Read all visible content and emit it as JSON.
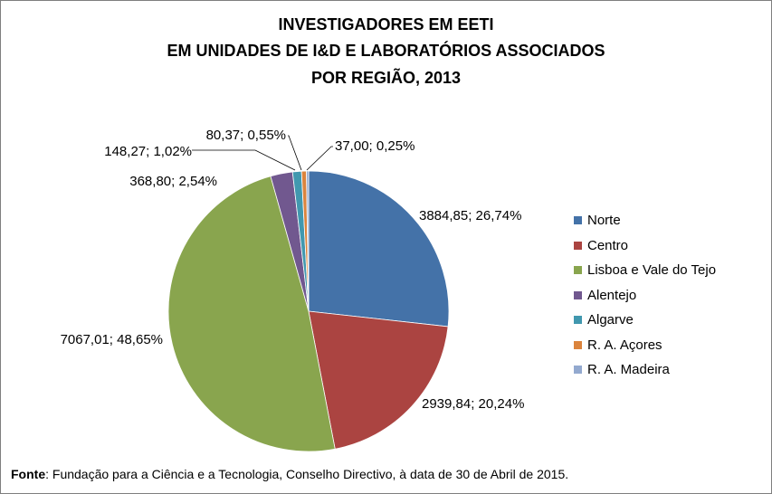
{
  "chart_data": {
    "type": "pie",
    "title_lines": [
      "INVESTIGADORES EM EETI",
      "EM UNIDADES DE I&D E LABORATÓRIOS ASSOCIADOS",
      "POR REGIÃO, 2013"
    ],
    "slices": [
      {
        "name": "Norte",
        "value": 3884.85,
        "label": "3884,85; 26,74%",
        "color": "#4472a8"
      },
      {
        "name": "Centro",
        "value": 2939.84,
        "label": "2939,84; 20,24%",
        "color": "#ab4441"
      },
      {
        "name": "Lisboa e Vale do Tejo",
        "value": 7067.01,
        "label": "7067,01; 48,65%",
        "color": "#89a54e"
      },
      {
        "name": "Alentejo",
        "value": 368.8,
        "label": "368,80; 2,54%",
        "color": "#71588f"
      },
      {
        "name": "Algarve",
        "value": 148.27,
        "label": "148,27; 1,02%",
        "color": "#4198af"
      },
      {
        "name": "R. A. Açores",
        "value": 80.37,
        "label": "80,37; 0,55%",
        "color": "#db843d"
      },
      {
        "name": "R. A. Madeira",
        "value": 37.0,
        "label": "37,00; 0,25%",
        "color": "#93a9cf"
      }
    ],
    "legend_position": "right"
  },
  "footer": {
    "label": "Fonte",
    "text": ": Fundação para a Ciência e a Tecnologia, Conselho Directivo, à data de 30 de Abril de 2015."
  }
}
